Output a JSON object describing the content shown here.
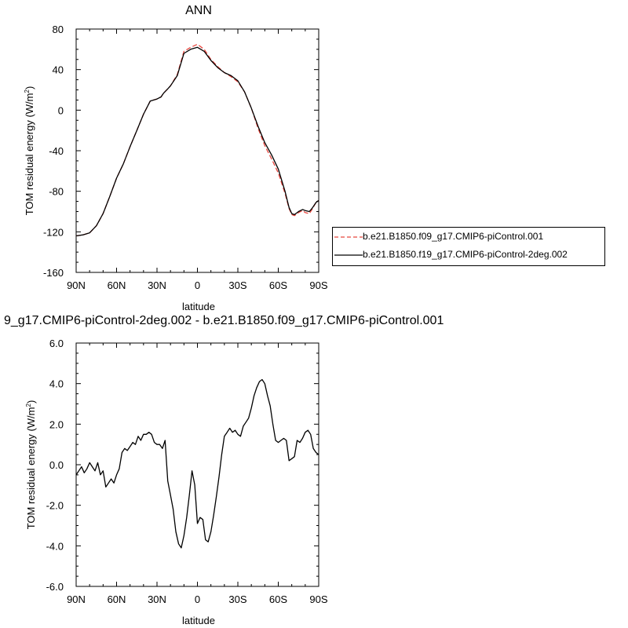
{
  "chart_data": [
    {
      "type": "line",
      "title": "ANN",
      "xlabel": "latitude",
      "ylabel": "TOM residual energy (W/m",
      "ylabel_sup": "2",
      "ylabel_close": ")",
      "xlim": [
        -90,
        90
      ],
      "ylim": [
        -160,
        80
      ],
      "x_ticks": [
        -90,
        -60,
        -30,
        0,
        30,
        60,
        90
      ],
      "x_tick_labels": [
        "90N",
        "60N",
        "30N",
        "0",
        "30S",
        "60S",
        "90S"
      ],
      "y_ticks": [
        80,
        40,
        0,
        -40,
        -80,
        -120,
        -160
      ],
      "y_tick_labels": [
        "80",
        "40",
        "0",
        "-40",
        "-80",
        "-120",
        "-160"
      ],
      "legend_position": "right",
      "series": [
        {
          "name": "b.e21.B1850.f09_g17.CMIP6-piControl.001",
          "color": "#e8473f",
          "dash": "dashed",
          "x": [
            -90,
            -85,
            -80,
            -75,
            -70,
            -65,
            -60,
            -55,
            -50,
            -45,
            -40,
            -35,
            -30,
            -27,
            -25,
            -22,
            -20,
            -15,
            -10,
            -5,
            0,
            5,
            10,
            15,
            20,
            25,
            30,
            35,
            40,
            45,
            50,
            55,
            60,
            65,
            68,
            70,
            72,
            75,
            78,
            80,
            83,
            85,
            88,
            90
          ],
          "y": [
            -124,
            -123,
            -121,
            -114,
            -102,
            -85,
            -67,
            -53,
            -36,
            -20,
            -4,
            9,
            11,
            13,
            17,
            21,
            24,
            35,
            58,
            62,
            65,
            60,
            50,
            43,
            37,
            33,
            28,
            18,
            2,
            -18,
            -35,
            -48,
            -62,
            -82,
            -97,
            -103,
            -104,
            -101,
            -99,
            -101,
            -102,
            -98,
            -91,
            -89
          ]
        },
        {
          "name": "b.e21.B1850.f19_g17.CMIP6-piControl-2deg.002",
          "color": "#000000",
          "dash": "solid",
          "x": [
            -90,
            -85,
            -80,
            -75,
            -70,
            -65,
            -60,
            -55,
            -50,
            -45,
            -40,
            -35,
            -30,
            -27,
            -25,
            -22,
            -20,
            -15,
            -10,
            -5,
            0,
            5,
            10,
            15,
            20,
            25,
            30,
            35,
            40,
            45,
            50,
            55,
            60,
            65,
            68,
            70,
            72,
            75,
            78,
            80,
            83,
            85,
            88,
            90
          ],
          "y": [
            -124,
            -123,
            -121,
            -114,
            -102,
            -85,
            -67,
            -53,
            -36,
            -20,
            -4,
            9,
            11,
            13,
            17,
            21,
            24,
            34,
            56,
            60,
            62,
            58,
            49,
            42,
            37,
            34,
            29,
            18,
            2,
            -16,
            -32,
            -44,
            -58,
            -80,
            -96,
            -102,
            -103,
            -100,
            -98,
            -99,
            -100,
            -97,
            -91,
            -89
          ]
        }
      ]
    },
    {
      "type": "line",
      "title": "9_g17.CMIP6-piControl-2deg.002 - b.e21.B1850.f09_g17.CMIP6-piControl.001",
      "xlabel": "latitude",
      "ylabel": "TOM residual energy (W/m",
      "ylabel_sup": "2",
      "ylabel_close": ")",
      "xlim": [
        -90,
        90
      ],
      "ylim": [
        -6,
        6
      ],
      "x_ticks": [
        -90,
        -60,
        -30,
        0,
        30,
        60,
        90
      ],
      "x_tick_labels": [
        "90N",
        "60N",
        "30N",
        "0",
        "30S",
        "60S",
        "90S"
      ],
      "y_ticks": [
        6,
        4,
        2,
        0,
        -2,
        -4,
        -6
      ],
      "y_tick_labels": [
        "6.0",
        "4.0",
        "2.0",
        "0.0",
        "-2.0",
        "-4.0",
        "-6.0"
      ],
      "series": [
        {
          "color": "#000000",
          "dash": "solid",
          "x": [
            -90,
            -88,
            -86,
            -84,
            -82,
            -80,
            -78,
            -76,
            -74,
            -72,
            -70,
            -68,
            -66,
            -64,
            -62,
            -60,
            -58,
            -56,
            -54,
            -52,
            -50,
            -48,
            -46,
            -44,
            -42,
            -40,
            -38,
            -36,
            -34,
            -32,
            -30,
            -28,
            -26,
            -24,
            -22,
            -20,
            -18,
            -16,
            -14,
            -12,
            -10,
            -8,
            -6,
            -4,
            -2,
            0,
            2,
            4,
            6,
            8,
            10,
            12,
            14,
            16,
            18,
            20,
            22,
            24,
            26,
            28,
            30,
            32,
            34,
            36,
            38,
            40,
            42,
            44,
            46,
            48,
            50,
            52,
            54,
            56,
            58,
            60,
            62,
            64,
            66,
            68,
            70,
            72,
            74,
            76,
            78,
            80,
            82,
            84,
            86,
            88,
            90
          ],
          "y": [
            -0.5,
            -0.3,
            -0.1,
            -0.4,
            -0.2,
            0.1,
            -0.1,
            -0.3,
            0.1,
            -0.5,
            -0.3,
            -1.1,
            -0.9,
            -0.7,
            -0.9,
            -0.5,
            -0.2,
            0.6,
            0.8,
            0.7,
            0.9,
            1.1,
            1.0,
            1.4,
            1.2,
            1.5,
            1.5,
            1.6,
            1.5,
            1.1,
            1.0,
            1.0,
            0.8,
            1.2,
            -0.8,
            -1.5,
            -2.2,
            -3.3,
            -3.9,
            -4.1,
            -3.5,
            -2.6,
            -1.5,
            -0.3,
            -1.0,
            -2.9,
            -2.6,
            -2.7,
            -3.7,
            -3.8,
            -3.3,
            -2.5,
            -1.6,
            -0.6,
            0.5,
            1.4,
            1.6,
            1.8,
            1.6,
            1.7,
            1.5,
            1.4,
            1.9,
            2.1,
            2.3,
            2.8,
            3.4,
            3.8,
            4.1,
            4.2,
            4.0,
            3.4,
            2.9,
            2.0,
            1.2,
            1.1,
            1.2,
            1.3,
            1.2,
            0.2,
            0.3,
            0.4,
            1.2,
            1.1,
            1.3,
            1.6,
            1.7,
            1.5,
            0.8,
            0.6,
            0.5
          ]
        }
      ]
    }
  ]
}
